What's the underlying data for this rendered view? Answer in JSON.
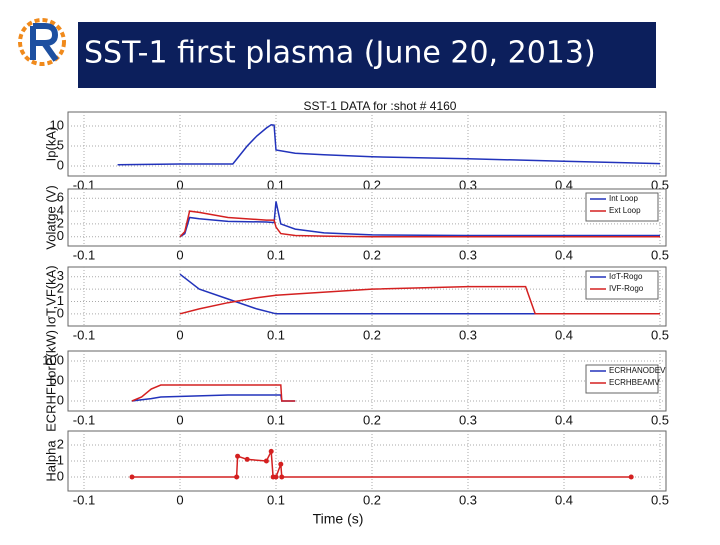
{
  "slide": {
    "title": "SST-1 first plasma (June 20, 2013)"
  },
  "chart_data": [
    {
      "type": "line",
      "title": "SST-1 DATA for :shot # 4160",
      "ylabel": "Ip(kA)",
      "x": [
        -0.065,
        0,
        0.055,
        0.06,
        0.07,
        0.08,
        0.09,
        0.095,
        0.098,
        0.1,
        0.12,
        0.15,
        0.2,
        0.3,
        0.4,
        0.5
      ],
      "series": [
        {
          "name": "Ip",
          "color": "#2233bb",
          "values": [
            0.3,
            0.5,
            0.5,
            2,
            5,
            7.5,
            9.5,
            10.3,
            10.2,
            4,
            3.2,
            2.8,
            2.3,
            1.8,
            1.2,
            0.6
          ]
        }
      ],
      "xlim": [
        -0.1,
        0.5
      ],
      "xticks": [
        -0.1,
        0,
        0.1,
        0.2,
        0.3,
        0.4,
        0.5
      ],
      "ylim": [
        -1,
        12
      ],
      "yticks": [
        0,
        5,
        10
      ],
      "grid": true,
      "legend": false
    },
    {
      "type": "line",
      "ylabel": "Volatge (V)",
      "x": [
        0,
        0.005,
        0.01,
        0.02,
        0.05,
        0.09,
        0.098,
        0.1,
        0.105,
        0.12,
        0.15,
        0.2,
        0.3,
        0.4,
        0.5
      ],
      "series": [
        {
          "name": "Int Loop",
          "color": "#2233bb",
          "values": [
            0,
            0.5,
            3,
            2.8,
            2.4,
            2.3,
            2.2,
            5.5,
            2,
            1.2,
            0.6,
            0.3,
            0.2,
            0.2,
            0.2
          ]
        },
        {
          "name": "Ext Loop",
          "color": "#d42020",
          "values": [
            0,
            0.8,
            4,
            3.8,
            3,
            2.6,
            2.6,
            1.5,
            0.5,
            0.2,
            0.1,
            0,
            0,
            0,
            0
          ]
        }
      ],
      "xlim": [
        -0.1,
        0.5
      ],
      "xticks": [
        -0.1,
        0,
        0.1,
        0.2,
        0.3,
        0.4,
        0.5
      ],
      "ylim": [
        -0.5,
        6.5
      ],
      "yticks": [
        0,
        2,
        4,
        6
      ],
      "grid": true,
      "legend": "upper right"
    },
    {
      "type": "line",
      "ylabel": "IσT,VF(kA)",
      "x": [
        0,
        0.02,
        0.05,
        0.08,
        0.1,
        0.12,
        0.2,
        0.3,
        0.36,
        0.37,
        0.4,
        0.5
      ],
      "series": [
        {
          "name": "IσT-Rogo",
          "color": "#2233bb",
          "values": [
            3.2,
            2,
            1.2,
            0.4,
            0,
            0,
            0,
            0,
            0,
            0,
            0,
            0
          ]
        },
        {
          "name": "IVF-Rogo",
          "color": "#d42020",
          "values": [
            0,
            0.4,
            0.9,
            1.3,
            1.5,
            1.6,
            2,
            2.2,
            2.2,
            0,
            0,
            0
          ]
        }
      ],
      "xlim": [
        -0.1,
        0.5
      ],
      "xticks": [
        -0.1,
        0,
        0.1,
        0.2,
        0.3,
        0.4,
        0.5
      ],
      "ylim": [
        -0.5,
        3.3
      ],
      "yticks": [
        0,
        1,
        2,
        3
      ],
      "grid": true,
      "legend": "upper right"
    },
    {
      "type": "line",
      "ylabel": "ECRHFHorP(kW)",
      "x": [
        -0.05,
        -0.04,
        -0.03,
        -0.02,
        0.05,
        0.105,
        0.106,
        0.12
      ],
      "series": [
        {
          "name": "ECRHANODEV",
          "color": "#2233bb",
          "values": [
            0,
            3,
            6,
            10,
            15,
            15,
            0,
            0
          ]
        },
        {
          "name": "ECRHBEAMV",
          "color": "#d42020",
          "values": [
            0,
            10,
            30,
            40,
            40,
            40,
            0,
            0
          ]
        }
      ],
      "xlim": [
        -0.1,
        0.5
      ],
      "xticks": [
        -0.1,
        0,
        0.1,
        0.2,
        0.3,
        0.4,
        0.5
      ],
      "ylim": [
        -10,
        110
      ],
      "yticks": [
        0,
        50,
        100
      ],
      "grid": true,
      "legend": "right"
    },
    {
      "type": "line",
      "ylabel": "Halpha",
      "xlabel": "Time (s)",
      "x": [
        -0.05,
        0.059,
        0.06,
        0.07,
        0.09,
        0.095,
        0.097,
        0.1,
        0.105,
        0.106,
        0.47
      ],
      "series": [
        {
          "name": "Halpha",
          "color": "#d42020",
          "values": [
            0,
            0,
            1.3,
            1.1,
            1,
            1.6,
            0,
            0,
            0.8,
            0,
            0
          ]
        }
      ],
      "xlim": [
        -0.1,
        0.5
      ],
      "xticks": [
        -0.1,
        0,
        0.1,
        0.2,
        0.3,
        0.4,
        0.5
      ],
      "ylim": [
        -0.5,
        2.5
      ],
      "yticks": [
        0,
        1,
        2
      ],
      "grid": true,
      "legend": false,
      "markers": true
    }
  ]
}
